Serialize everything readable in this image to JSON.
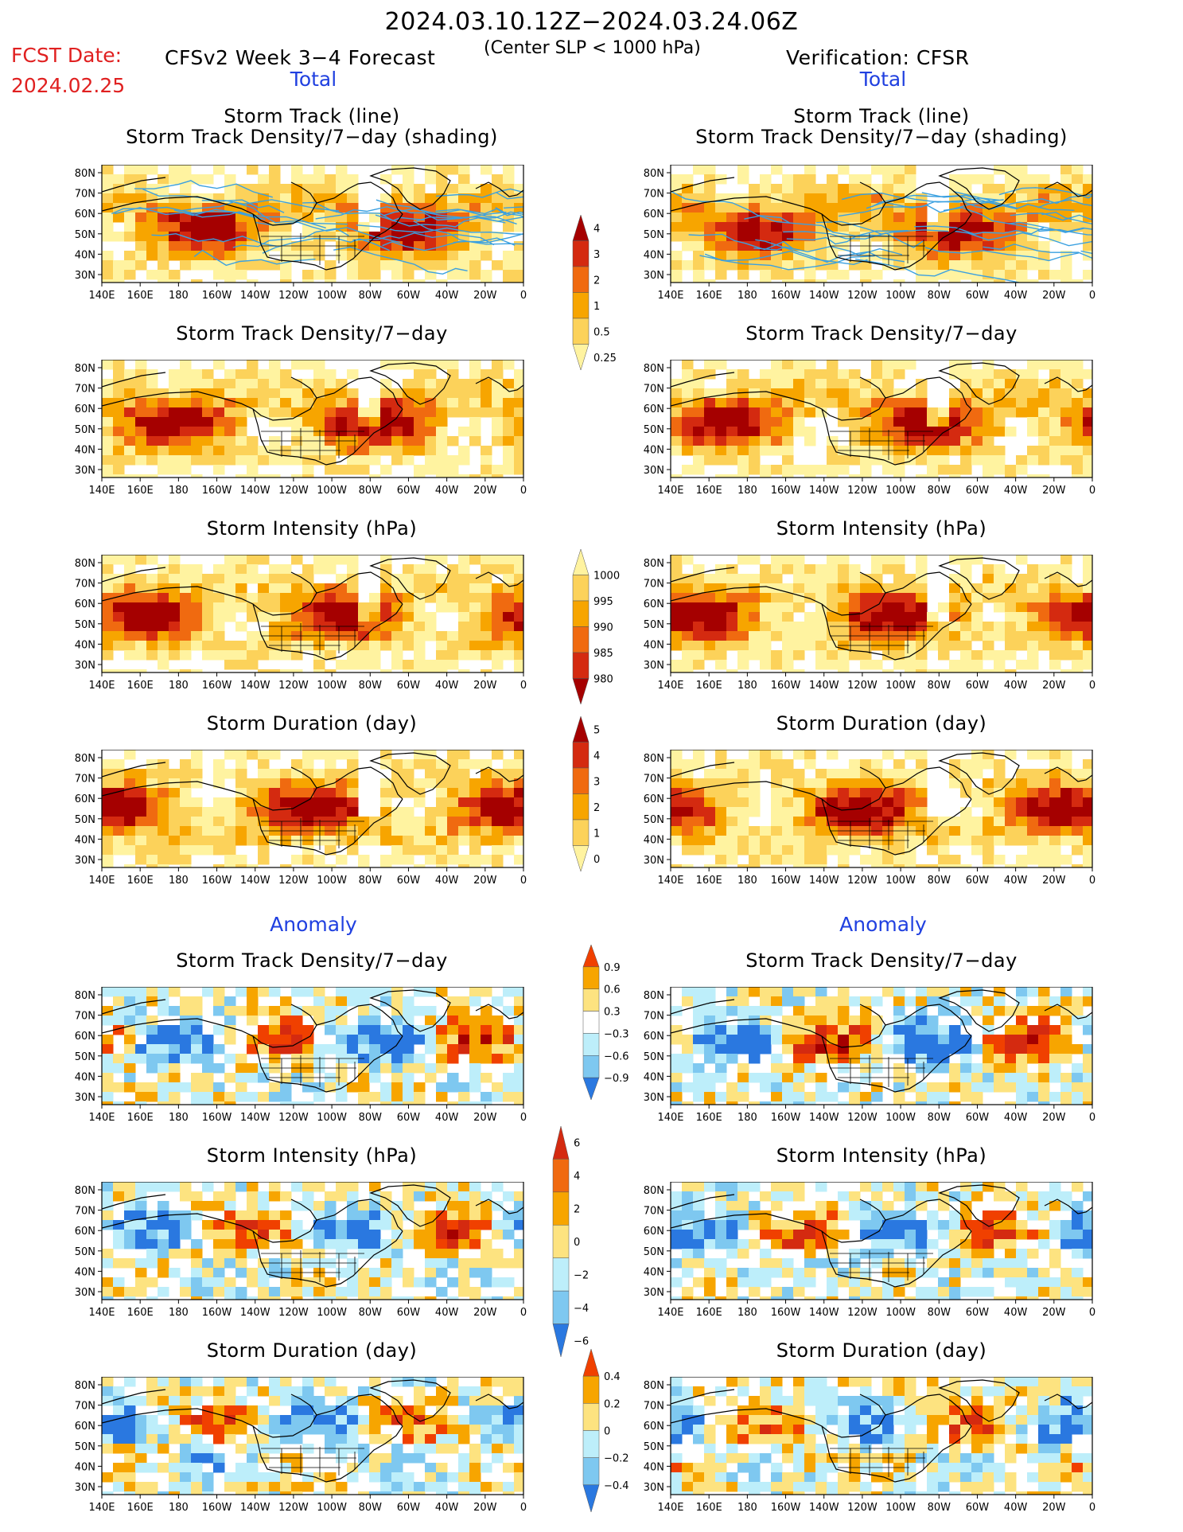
{
  "header": {
    "period": "2024.03.10.12Z−2024.03.24.06Z",
    "fcst_label": "FCST Date:",
    "fcst_date": "2024.02.25",
    "model_title": "CFSv2 Week 3−4 Forecast",
    "subtitle": "(Center SLP < 1000 hPa)",
    "verification": "Verification: CFSR"
  },
  "sections": {
    "total": "Total",
    "anomaly": "Anomaly"
  },
  "panel_titles": {
    "track_line": "Storm Track (line)",
    "track_density_shading": "Storm Track Density/7−day (shading)",
    "track_density": "Storm Track Density/7−day",
    "intensity": "Storm Intensity (hPa)",
    "duration": "Storm Duration (day)"
  },
  "axes": {
    "lon_ticks": [
      "140E",
      "160E",
      "180",
      "160W",
      "140W",
      "120W",
      "100W",
      "80W",
      "60W",
      "40W",
      "20W",
      "0"
    ],
    "lat_ticks": [
      "80N",
      "70N",
      "60N",
      "50N",
      "40N",
      "30N"
    ]
  },
  "colorbars": {
    "total_density": {
      "labels": [
        "4",
        "3",
        "2",
        "1",
        "0.5",
        "0.25"
      ],
      "colors": [
        "#a50000",
        "#d42a10",
        "#f06a10",
        "#f7a500",
        "#fcd25a",
        "#fff3a0"
      ]
    },
    "total_intensity": {
      "labels": [
        "1000",
        "995",
        "990",
        "985",
        "980"
      ],
      "colors": [
        "#fff3a0",
        "#fcd25a",
        "#f7a500",
        "#f06a10",
        "#d42a10",
        "#a50000"
      ]
    },
    "total_duration": {
      "labels": [
        "5",
        "4",
        "3",
        "2",
        "1",
        "0"
      ],
      "colors": [
        "#a50000",
        "#d42a10",
        "#f06a10",
        "#f7a500",
        "#fcd25a",
        "#fff3a0"
      ]
    },
    "anom_density": {
      "labels": [
        "0.9",
        "0.6",
        "0.3",
        "−0.3",
        "−0.6",
        "−0.9"
      ],
      "colors": [
        "#f04000",
        "#f7a500",
        "#fde380",
        "#ffffff",
        "#bdeefa",
        "#7ec8f0",
        "#2a78e0"
      ]
    },
    "anom_intensity": {
      "labels": [
        "6",
        "4",
        "2",
        "0",
        "−2",
        "−4",
        "−6"
      ],
      "colors": [
        "#d42a10",
        "#f06a10",
        "#f7a500",
        "#fde380",
        "#bdeefa",
        "#7ec8f0",
        "#2a78e0"
      ]
    },
    "anom_duration": {
      "labels": [
        "0.4",
        "0.2",
        "0",
        "−0.2",
        "−0.4"
      ],
      "colors": [
        "#f04000",
        "#f7a500",
        "#fde380",
        "#bdeefa",
        "#7ec8f0",
        "#2a78e0"
      ]
    }
  },
  "palette": {
    "total": [
      "#fff3a0",
      "#fcd25a",
      "#f7a500",
      "#f06a10",
      "#d42a10",
      "#a50000"
    ],
    "anom": [
      "#2a78e0",
      "#7ec8f0",
      "#bdeefa",
      "#ffffff",
      "#fde380",
      "#f7a500",
      "#f04000",
      "#d42a10",
      "#a50000"
    ],
    "track_line": "#3aa0e0"
  }
}
